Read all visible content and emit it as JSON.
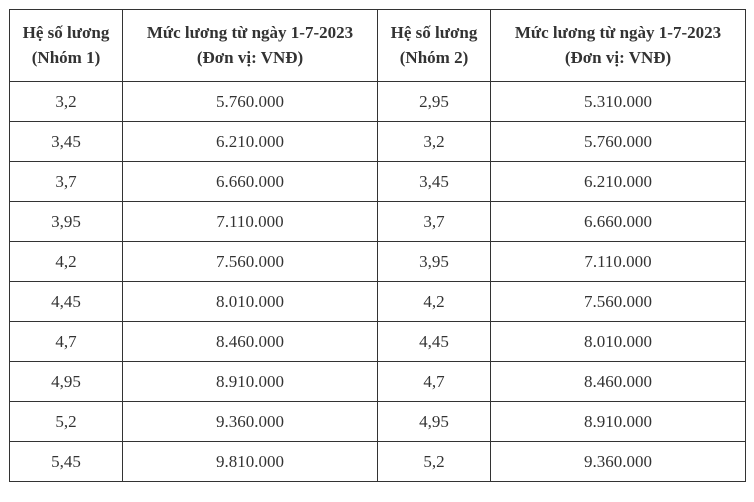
{
  "table": {
    "headers": {
      "group1_coef": {
        "line1": "Hệ số lương",
        "line2": "(Nhóm 1)"
      },
      "group1_salary": {
        "line1": "Mức lương từ ngày 1-7-2023",
        "line2": "(Đơn vị: VNĐ)"
      },
      "group2_coef": {
        "line1": "Hệ số lương",
        "line2": "(Nhóm 2)"
      },
      "group2_salary": {
        "line1": "Mức lương từ ngày 1-7-2023",
        "line2": "(Đơn vị: VNĐ)"
      }
    },
    "rows": [
      [
        "3,2",
        "5.760.000",
        "2,95",
        "5.310.000"
      ],
      [
        "3,45",
        "6.210.000",
        "3,2",
        "5.760.000"
      ],
      [
        "3,7",
        "6.660.000",
        "3,45",
        "6.210.000"
      ],
      [
        "3,95",
        "7.110.000",
        "3,7",
        "6.660.000"
      ],
      [
        "4,2",
        "7.560.000",
        "3,95",
        "7.110.000"
      ],
      [
        "4,45",
        "8.010.000",
        "4,2",
        "7.560.000"
      ],
      [
        "4,7",
        "8.460.000",
        "4,45",
        "8.010.000"
      ],
      [
        "4,95",
        "8.910.000",
        "4,7",
        "8.460.000"
      ],
      [
        "5,2",
        "9.360.000",
        "4,95",
        "8.910.000"
      ],
      [
        "5,45",
        "9.810.000",
        "5,2",
        "9.360.000"
      ]
    ],
    "colors": {
      "border": "#333333",
      "text": "#333333",
      "background": "#ffffff"
    }
  }
}
